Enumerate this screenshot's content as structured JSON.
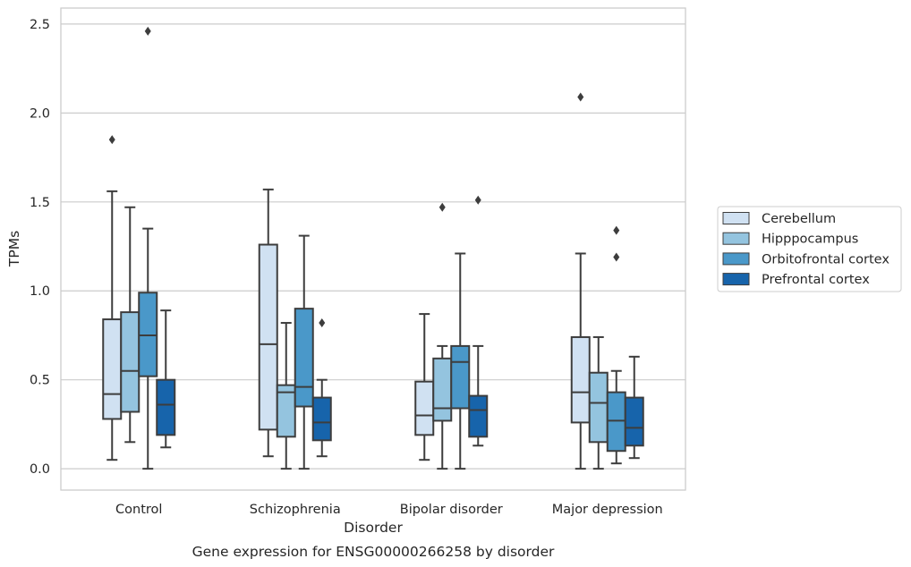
{
  "chart_data": {
    "type": "boxplot",
    "xlabel": "Disorder",
    "ylabel": "TPMs",
    "caption": "Gene expression for ENSG00000266258 by disorder",
    "ylim": [
      -0.12,
      2.59
    ],
    "yticks": [
      "0.0",
      "0.5",
      "1.0",
      "1.5",
      "2.0",
      "2.5"
    ],
    "grid": "horizontal",
    "legend_position": "right",
    "categories": [
      "Control",
      "Schizophrenia",
      "Bipolar disorder",
      "Major depression"
    ],
    "series": [
      {
        "name": "Cerebellum",
        "color": "#d0e1f2",
        "boxes": [
          {
            "whislo": 0.05,
            "q1": 0.28,
            "med": 0.42,
            "q3": 0.84,
            "whishi": 1.56,
            "fliers": [
              1.85
            ]
          },
          {
            "whislo": 0.07,
            "q1": 0.22,
            "med": 0.7,
            "q3": 1.26,
            "whishi": 1.57,
            "fliers": []
          },
          {
            "whislo": 0.05,
            "q1": 0.19,
            "med": 0.3,
            "q3": 0.49,
            "whishi": 0.87,
            "fliers": []
          },
          {
            "whislo": 0.0,
            "q1": 0.26,
            "med": 0.43,
            "q3": 0.74,
            "whishi": 1.21,
            "fliers": [
              2.09
            ]
          }
        ]
      },
      {
        "name": "Hipppocampus",
        "color": "#94c4df",
        "boxes": [
          {
            "whislo": 0.15,
            "q1": 0.32,
            "med": 0.55,
            "q3": 0.88,
            "whishi": 1.47,
            "fliers": []
          },
          {
            "whislo": 0.0,
            "q1": 0.18,
            "med": 0.43,
            "q3": 0.47,
            "whishi": 0.82,
            "fliers": []
          },
          {
            "whislo": 0.0,
            "q1": 0.27,
            "med": 0.34,
            "q3": 0.62,
            "whishi": 0.69,
            "fliers": [
              1.47
            ]
          },
          {
            "whislo": 0.0,
            "q1": 0.15,
            "med": 0.37,
            "q3": 0.54,
            "whishi": 0.74,
            "fliers": []
          }
        ]
      },
      {
        "name": "Orbitofrontal cortex",
        "color": "#4a98c9",
        "boxes": [
          {
            "whislo": 0.0,
            "q1": 0.52,
            "med": 0.75,
            "q3": 0.99,
            "whishi": 1.35,
            "fliers": [
              2.46
            ]
          },
          {
            "whislo": 0.0,
            "q1": 0.35,
            "med": 0.46,
            "q3": 0.9,
            "whishi": 1.31,
            "fliers": []
          },
          {
            "whislo": 0.0,
            "q1": 0.34,
            "med": 0.6,
            "q3": 0.69,
            "whishi": 1.21,
            "fliers": []
          },
          {
            "whislo": 0.03,
            "q1": 0.1,
            "med": 0.27,
            "q3": 0.43,
            "whishi": 0.55,
            "fliers": [
              1.19,
              1.34
            ]
          }
        ]
      },
      {
        "name": "Prefrontal cortex",
        "color": "#1764ab",
        "boxes": [
          {
            "whislo": 0.12,
            "q1": 0.19,
            "med": 0.36,
            "q3": 0.5,
            "whishi": 0.89,
            "fliers": []
          },
          {
            "whislo": 0.07,
            "q1": 0.16,
            "med": 0.26,
            "q3": 0.4,
            "whishi": 0.5,
            "fliers": [
              0.82
            ]
          },
          {
            "whislo": 0.13,
            "q1": 0.18,
            "med": 0.33,
            "q3": 0.41,
            "whishi": 0.69,
            "fliers": [
              1.51
            ]
          },
          {
            "whislo": 0.06,
            "q1": 0.13,
            "med": 0.23,
            "q3": 0.4,
            "whishi": 0.63,
            "fliers": []
          }
        ]
      }
    ]
  }
}
